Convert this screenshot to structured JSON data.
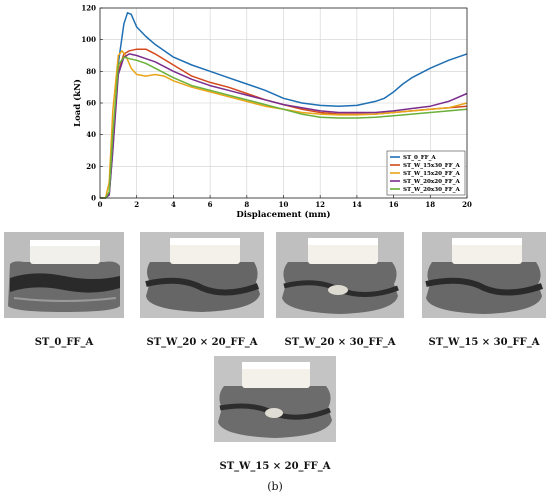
{
  "chart_data": {
    "type": "line",
    "title": "",
    "xlabel": "Displacement (mm)",
    "ylabel": "Load (kN)",
    "xlim": [
      0,
      20
    ],
    "ylim": [
      0,
      120
    ],
    "xticks": [
      0,
      2,
      4,
      6,
      8,
      10,
      12,
      14,
      16,
      18,
      20
    ],
    "yticks": [
      0,
      20,
      40,
      60,
      80,
      100,
      120
    ],
    "grid": true,
    "legend_position": "bottom-right",
    "series": [
      {
        "name": "ST_0_FF_A",
        "color": "#1f6fb4",
        "x": [
          0,
          0.3,
          0.5,
          0.7,
          1.0,
          1.3,
          1.5,
          1.7,
          2.0,
          2.5,
          3.0,
          4.0,
          5.0,
          6.0,
          7.0,
          8.0,
          9.0,
          10.0,
          11.0,
          12.0,
          13.0,
          14.0,
          15.0,
          15.5,
          16.0,
          16.5,
          17.0,
          18.0,
          19.0,
          20.0
        ],
        "y": [
          0,
          0,
          2,
          30,
          85,
          110,
          117,
          116,
          108,
          102,
          97,
          89,
          84,
          80,
          76,
          72,
          68,
          63,
          60,
          58.5,
          58,
          58.5,
          61,
          63,
          67,
          72,
          76,
          82,
          87,
          91
        ]
      },
      {
        "name": "ST_W_15x30_FF_A",
        "color": "#d4491c",
        "x": [
          0,
          0.3,
          0.5,
          0.7,
          1.0,
          1.3,
          1.6,
          2.0,
          2.5,
          3.0,
          4.0,
          5.0,
          6.0,
          7.0,
          8.0,
          9.0,
          10.0,
          11.0,
          12.0,
          13.0,
          14.0,
          15.0,
          16.0,
          17.0,
          18.0,
          19.0,
          20.0
        ],
        "y": [
          0,
          0,
          3,
          35,
          80,
          91,
          93,
          94,
          94,
          91,
          84,
          77,
          73,
          70,
          66,
          62,
          59,
          56,
          54,
          53,
          53,
          53,
          54,
          55,
          56,
          57,
          58
        ]
      },
      {
        "name": "ST_W_15x20_FF_A",
        "color": "#e8a517",
        "x": [
          0,
          0.3,
          0.5,
          0.7,
          1.0,
          1.2,
          1.4,
          1.7,
          2.0,
          2.5,
          3.0,
          3.5,
          4.0,
          5.0,
          6.0,
          7.0,
          8.0,
          9.0,
          10.0,
          11.0,
          12.0,
          13.0,
          14.0,
          15.0,
          16.0,
          17.0,
          18.0,
          19.0,
          20.0
        ],
        "y": [
          0,
          0,
          10,
          55,
          90,
          93,
          90,
          82,
          78,
          77,
          78,
          77,
          74,
          70,
          67,
          64,
          61,
          58,
          56,
          54,
          53,
          52.5,
          52.5,
          53,
          54,
          55,
          56,
          57,
          60
        ]
      },
      {
        "name": "ST_W_20x20_FF_A",
        "color": "#7b2d8e",
        "x": [
          0,
          0.3,
          0.5,
          0.7,
          1.0,
          1.3,
          1.6,
          2.0,
          2.5,
          3.0,
          4.0,
          5.0,
          6.0,
          7.0,
          8.0,
          9.0,
          10.0,
          11.0,
          12.0,
          13.0,
          14.0,
          15.0,
          16.0,
          17.0,
          18.0,
          19.0,
          20.0
        ],
        "y": [
          0,
          0,
          2,
          30,
          78,
          89,
          91,
          90,
          88,
          86,
          80,
          75,
          71,
          68,
          65,
          62,
          59,
          57,
          55,
          54,
          54,
          54,
          55,
          56.5,
          58,
          61,
          66
        ]
      },
      {
        "name": "ST_W_20x30_FF_A",
        "color": "#6ab03a",
        "x": [
          0,
          0.3,
          0.5,
          0.7,
          1.0,
          1.3,
          1.6,
          2.0,
          2.5,
          3.0,
          4.0,
          5.0,
          6.0,
          7.0,
          8.0,
          9.0,
          10.0,
          11.0,
          12.0,
          13.0,
          14.0,
          15.0,
          16.0,
          17.0,
          18.0,
          19.0,
          20.0
        ],
        "y": [
          0,
          0,
          4,
          40,
          84,
          89,
          88,
          87,
          85,
          82,
          76,
          71,
          68,
          65,
          62,
          59,
          56,
          53,
          51,
          50.5,
          50.5,
          51,
          52,
          53,
          54,
          55,
          56
        ]
      }
    ]
  },
  "photos": [
    {
      "caption": "ST_0_FF_A",
      "label_name": "photo-st-0-ff-a"
    },
    {
      "caption": "ST_W_20 × 20_FF_A",
      "label_name": "photo-st-w-20x20-ff-a"
    },
    {
      "caption": "ST_W_20 × 30_FF_A",
      "label_name": "photo-st-w-20x30-ff-a"
    },
    {
      "caption": "ST_W_15 × 30_FF_A",
      "label_name": "photo-st-w-15x30-ff-a"
    },
    {
      "caption": "ST_W_15 × 20_FF_A",
      "label_name": "photo-st-w-15x20-ff-a"
    }
  ],
  "figure_label": "(b)"
}
